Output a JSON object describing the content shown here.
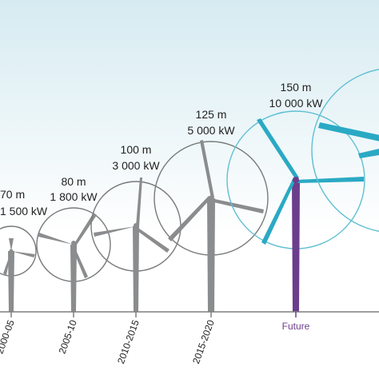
{
  "colors": {
    "sky_top": "#d6ebf1",
    "sky_bottom": "#ffffff",
    "turbine_gray": "#8a8c8e",
    "circle_gray": "#77797b",
    "future_blade": "#2aa9c4",
    "future_tower": "#6b3d8c",
    "future_circle": "#5fbfd3",
    "axis": "#7f7f7f"
  },
  "turbines": [
    {
      "id": "t1",
      "diameter": "70 m",
      "power": "1 500 kW",
      "period": "2000-05",
      "future": false
    },
    {
      "id": "t2",
      "diameter": "80 m",
      "power": "1 800 kW",
      "period": "2005-10",
      "future": false
    },
    {
      "id": "t3",
      "diameter": "100 m",
      "power": "3 000 kW",
      "period": "2010-2015",
      "future": false
    },
    {
      "id": "t4",
      "diameter": "125 m",
      "power": "5 000 kW",
      "period": "2015-2020",
      "future": false
    },
    {
      "id": "t5",
      "diameter": "150 m",
      "power": "10 000 kW",
      "period": "Future",
      "future": true
    },
    {
      "id": "t6",
      "diameter": "",
      "power": "",
      "period": "",
      "future": true
    }
  ]
}
